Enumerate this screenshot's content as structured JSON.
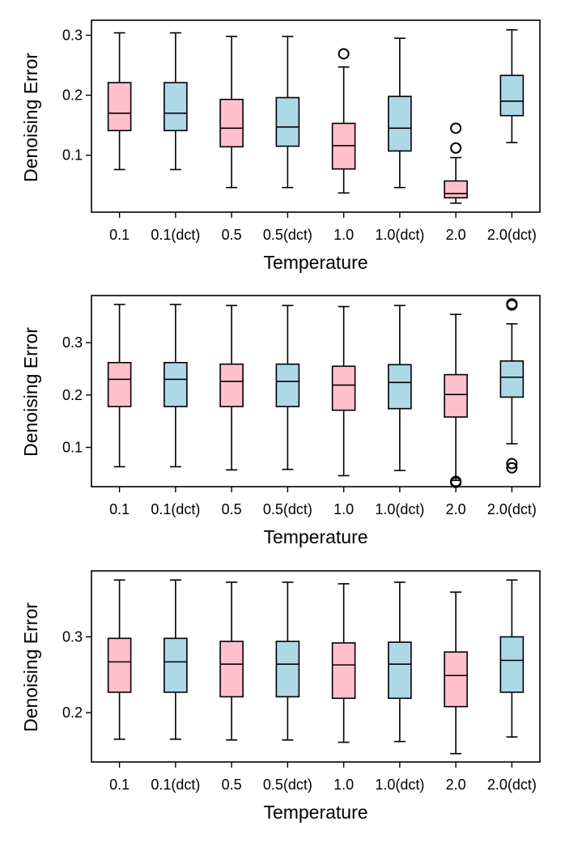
{
  "chart_data": [
    {
      "type": "box",
      "xlabel": "Temperature",
      "ylabel": "Denoising Error",
      "ylim": [
        0.005,
        0.325
      ],
      "yticks": [
        0.1,
        0.2,
        0.3
      ],
      "ytick_labels": [
        "0.1",
        "0.2",
        "0.3"
      ],
      "categories": [
        "0.1",
        "0.1(dct)",
        "0.5",
        "0.5(dct)",
        "1.0",
        "1.0(dct)",
        "2.0",
        "2.0(dct)"
      ],
      "boxes": [
        {
          "whislo": 0.076,
          "q1": 0.141,
          "med": 0.17,
          "q3": 0.221,
          "whishi": 0.304,
          "fliers": []
        },
        {
          "whislo": 0.076,
          "q1": 0.141,
          "med": 0.17,
          "q3": 0.221,
          "whishi": 0.304,
          "fliers": []
        },
        {
          "whislo": 0.046,
          "q1": 0.114,
          "med": 0.145,
          "q3": 0.193,
          "whishi": 0.298,
          "fliers": []
        },
        {
          "whislo": 0.046,
          "q1": 0.115,
          "med": 0.147,
          "q3": 0.196,
          "whishi": 0.298,
          "fliers": []
        },
        {
          "whislo": 0.037,
          "q1": 0.077,
          "med": 0.116,
          "q3": 0.153,
          "whishi": 0.247,
          "fliers": [
            0.269
          ]
        },
        {
          "whislo": 0.046,
          "q1": 0.107,
          "med": 0.145,
          "q3": 0.198,
          "whishi": 0.295,
          "fliers": []
        },
        {
          "whislo": 0.02,
          "q1": 0.029,
          "med": 0.036,
          "q3": 0.057,
          "whishi": 0.096,
          "fliers": [
            0.112,
            0.145
          ]
        },
        {
          "whislo": 0.121,
          "q1": 0.166,
          "med": 0.19,
          "q3": 0.233,
          "whishi": 0.309,
          "fliers": []
        }
      ]
    },
    {
      "type": "box",
      "xlabel": "Temperature",
      "ylabel": "Denoising Error",
      "ylim": [
        0.025,
        0.39
      ],
      "yticks": [
        0.1,
        0.2,
        0.3
      ],
      "ytick_labels": [
        "0.1",
        "0.2",
        "0.3"
      ],
      "categories": [
        "0.1",
        "0.1(dct)",
        "0.5",
        "0.5(dct)",
        "1.0",
        "1.0(dct)",
        "2.0",
        "2.0(dct)"
      ],
      "boxes": [
        {
          "whislo": 0.063,
          "q1": 0.178,
          "med": 0.23,
          "q3": 0.262,
          "whishi": 0.373,
          "fliers": []
        },
        {
          "whislo": 0.063,
          "q1": 0.178,
          "med": 0.23,
          "q3": 0.262,
          "whishi": 0.373,
          "fliers": []
        },
        {
          "whislo": 0.057,
          "q1": 0.178,
          "med": 0.226,
          "q3": 0.259,
          "whishi": 0.371,
          "fliers": []
        },
        {
          "whislo": 0.058,
          "q1": 0.178,
          "med": 0.226,
          "q3": 0.259,
          "whishi": 0.371,
          "fliers": []
        },
        {
          "whislo": 0.046,
          "q1": 0.171,
          "med": 0.219,
          "q3": 0.255,
          "whishi": 0.369,
          "fliers": []
        },
        {
          "whislo": 0.056,
          "q1": 0.174,
          "med": 0.224,
          "q3": 0.258,
          "whishi": 0.371,
          "fliers": []
        },
        {
          "whislo": 0.037,
          "q1": 0.158,
          "med": 0.201,
          "q3": 0.239,
          "whishi": 0.354,
          "fliers": [
            0.033,
            0.035
          ]
        },
        {
          "whislo": 0.107,
          "q1": 0.196,
          "med": 0.234,
          "q3": 0.265,
          "whishi": 0.336,
          "fliers": [
            0.061,
            0.069,
            0.372,
            0.374
          ]
        }
      ]
    },
    {
      "type": "box",
      "xlabel": "Temperature",
      "ylabel": "Denoising Error",
      "ylim": [
        0.135,
        0.387
      ],
      "yticks": [
        0.2,
        0.3
      ],
      "ytick_labels": [
        "0.2",
        "0.3"
      ],
      "categories": [
        "0.1",
        "0.1(dct)",
        "0.5",
        "0.5(dct)",
        "1.0",
        "1.0(dct)",
        "2.0",
        "2.0(dct)"
      ],
      "boxes": [
        {
          "whislo": 0.165,
          "q1": 0.227,
          "med": 0.267,
          "q3": 0.298,
          "whishi": 0.375,
          "fliers": []
        },
        {
          "whislo": 0.165,
          "q1": 0.227,
          "med": 0.267,
          "q3": 0.298,
          "whishi": 0.375,
          "fliers": []
        },
        {
          "whislo": 0.164,
          "q1": 0.221,
          "med": 0.264,
          "q3": 0.294,
          "whishi": 0.372,
          "fliers": []
        },
        {
          "whislo": 0.164,
          "q1": 0.221,
          "med": 0.264,
          "q3": 0.294,
          "whishi": 0.372,
          "fliers": []
        },
        {
          "whislo": 0.161,
          "q1": 0.219,
          "med": 0.263,
          "q3": 0.292,
          "whishi": 0.37,
          "fliers": []
        },
        {
          "whislo": 0.162,
          "q1": 0.219,
          "med": 0.264,
          "q3": 0.293,
          "whishi": 0.372,
          "fliers": []
        },
        {
          "whislo": 0.146,
          "q1": 0.208,
          "med": 0.249,
          "q3": 0.28,
          "whishi": 0.359,
          "fliers": []
        },
        {
          "whislo": 0.168,
          "q1": 0.227,
          "med": 0.269,
          "q3": 0.3,
          "whishi": 0.375,
          "fliers": []
        }
      ]
    }
  ],
  "colors": {
    "box_default": "#ffc0cb",
    "box_dct": "#add8e6",
    "stroke": "#000000"
  }
}
